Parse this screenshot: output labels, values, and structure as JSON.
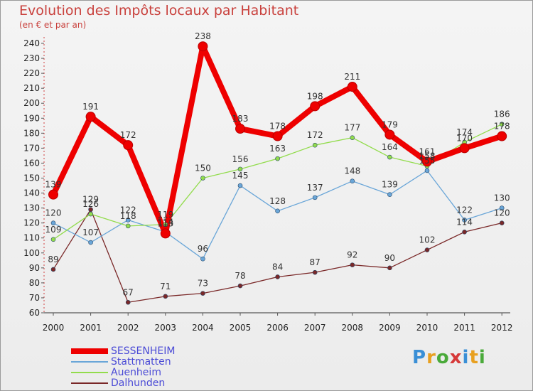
{
  "page": {
    "title": "Evolution des Impôts locaux par Habitant",
    "subtitle": "(en € et par an)",
    "brand": "Proxiti"
  },
  "chart_data": {
    "type": "line",
    "title": "Evolution des Impôts locaux par Habitant",
    "subtitle": "(en € et par an)",
    "xlabel": "",
    "ylabel": "",
    "x": [
      "2000",
      "2001",
      "2002",
      "2003",
      "2004",
      "2005",
      "2006",
      "2007",
      "2008",
      "2009",
      "2010",
      "2011",
      "2012"
    ],
    "ylim": [
      60,
      240
    ],
    "yticks": [
      60,
      70,
      80,
      90,
      100,
      110,
      120,
      130,
      140,
      150,
      160,
      170,
      180,
      190,
      200,
      210,
      220,
      230,
      240
    ],
    "grid": false,
    "legend_position": "bottom-left",
    "series": [
      {
        "name": "SESSENHEIM",
        "color": "#ee0000",
        "line_width": 8,
        "marker_radius": 6.5,
        "values": [
          139,
          191,
          172,
          113,
          238,
          183,
          178,
          198,
          211,
          179,
          161,
          170,
          178
        ]
      },
      {
        "name": "Stattmatten",
        "color": "#6aa6d8",
        "line_width": 1.3,
        "marker_radius": 3,
        "values": [
          120,
          107,
          122,
          114,
          96,
          145,
          128,
          137,
          148,
          139,
          155,
          122,
          130
        ]
      },
      {
        "name": "Auenheim",
        "color": "#92dc4c",
        "line_width": 1.3,
        "marker_radius": 3,
        "values": [
          109,
          126,
          118,
          119,
          150,
          156,
          163,
          172,
          177,
          164,
          158,
          174,
          186
        ]
      },
      {
        "name": "Dalhunden",
        "color": "#7a2828",
        "line_width": 1.3,
        "marker_radius": 3,
        "values": [
          89,
          129,
          67,
          71,
          73,
          78,
          84,
          87,
          92,
          90,
          102,
          114,
          120
        ]
      }
    ]
  }
}
